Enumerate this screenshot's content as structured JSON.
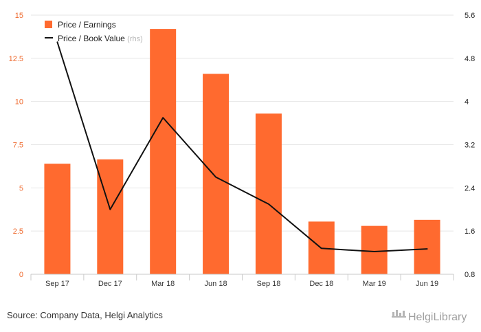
{
  "chart_data": {
    "type": "bar",
    "categories": [
      "Sep 17",
      "Dec 17",
      "Mar 18",
      "Jun 18",
      "Sep 18",
      "Dec 18",
      "Mar 19",
      "Jun 19"
    ],
    "series": [
      {
        "name": "Price / Earnings",
        "type": "bar",
        "axis": "left",
        "color": "#ff6a2f",
        "values": [
          6.4,
          6.65,
          14.2,
          11.6,
          9.3,
          3.05,
          2.8,
          3.15
        ]
      },
      {
        "name": "Price / Book Value",
        "name_suffix": "(rhs)",
        "type": "line",
        "axis": "right",
        "color": "#111111",
        "values": [
          5.1,
          2.0,
          3.7,
          2.6,
          2.1,
          1.28,
          1.22,
          1.27
        ]
      }
    ],
    "y_left": {
      "ticks": [
        "15",
        "12.5",
        "10",
        "7.5",
        "5",
        "2.5",
        "0"
      ],
      "values": [
        15,
        12.5,
        10,
        7.5,
        5,
        2.5,
        0
      ],
      "ylim": [
        0,
        15
      ],
      "color": "#ef6a2e"
    },
    "y_right": {
      "ticks": [
        "5.6",
        "4.8",
        "4",
        "3.2",
        "2.4",
        "1.6",
        "0.8"
      ],
      "values": [
        5.6,
        4.8,
        4,
        3.2,
        2.4,
        1.6,
        0.8
      ],
      "ylim": [
        0.8,
        5.6
      ],
      "color": "#222222"
    },
    "grid": true,
    "legend_position": "top-left"
  },
  "footer": {
    "source": "Source: Company Data, Helgi Analytics",
    "brand": "HelgiLibrary"
  }
}
